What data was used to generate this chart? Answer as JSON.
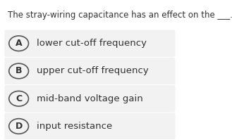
{
  "question": "The stray-wiring capacitance has an effect on the ___.",
  "options": [
    {
      "label": "A",
      "text": "lower cut-off frequency"
    },
    {
      "label": "B",
      "text": "upper cut-off frequency"
    },
    {
      "label": "C",
      "text": "mid-band voltage gain"
    },
    {
      "label": "D",
      "text": "input resistance"
    }
  ],
  "bg_color": "#ffffff",
  "option_bg_color": "#f2f2f2",
  "question_color": "#333333",
  "option_text_color": "#333333",
  "circle_edge_color": "#555555",
  "question_fontsize": 8.5,
  "option_fontsize": 9.5,
  "label_fontsize": 9.0
}
